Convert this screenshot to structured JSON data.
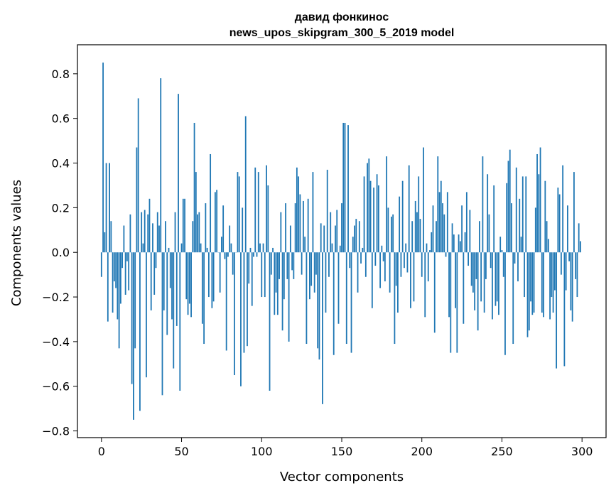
{
  "chart_data": {
    "type": "bar",
    "title_line1": "давид фонкинос",
    "title_line2": "news_upos_skipgram_300_5_2019 model",
    "xlabel": "Vector components",
    "ylabel": "Components values",
    "xlim": [
      -15,
      315
    ],
    "ylim": [
      -0.83,
      0.93
    ],
    "xticks": [
      0,
      50,
      100,
      150,
      200,
      250,
      300
    ],
    "yticks": [
      -0.8,
      -0.6,
      -0.4,
      -0.2,
      0.0,
      0.2,
      0.4,
      0.6,
      0.8
    ],
    "ytick_labels": [
      "−0.8",
      "−0.6",
      "−0.4",
      "−0.2",
      "0.0",
      "0.2",
      "0.4",
      "0.6",
      "0.8"
    ],
    "bar_color": "#1f77b4",
    "grid": false,
    "values": [
      -0.11,
      0.85,
      0.09,
      0.4,
      -0.31,
      0.4,
      0.14,
      -0.27,
      -0.13,
      -0.16,
      -0.3,
      -0.43,
      -0.23,
      -0.07,
      0.12,
      -0.19,
      -0.04,
      -0.17,
      0.17,
      -0.59,
      -0.75,
      -0.43,
      0.47,
      0.69,
      -0.71,
      0.18,
      0.04,
      0.19,
      -0.56,
      0.17,
      0.24,
      -0.26,
      0.13,
      -0.19,
      -0.07,
      0.18,
      0.12,
      0.78,
      -0.64,
      -0.26,
      0.14,
      -0.37,
      0.02,
      -0.16,
      -0.3,
      -0.52,
      0.18,
      -0.33,
      0.71,
      -0.62,
      0.04,
      0.24,
      0.24,
      -0.21,
      -0.28,
      -0.23,
      -0.29,
      0.14,
      0.58,
      0.36,
      0.17,
      0.18,
      0.04,
      -0.32,
      -0.41,
      0.22,
      0.02,
      -0.2,
      0.44,
      -0.25,
      -0.22,
      0.27,
      0.28,
      0.0,
      -0.18,
      0.07,
      0.21,
      -0.03,
      -0.44,
      -0.02,
      0.12,
      0.04,
      -0.1,
      -0.55,
      0.0,
      0.36,
      0.34,
      -0.6,
      0.2,
      -0.45,
      0.61,
      -0.42,
      -0.14,
      0.02,
      -0.24,
      -0.02,
      0.38,
      -0.02,
      0.36,
      0.04,
      -0.2,
      0.04,
      -0.2,
      0.39,
      0.3,
      -0.62,
      -0.1,
      0.02,
      -0.28,
      -0.18,
      -0.28,
      -0.12,
      0.18,
      -0.35,
      -0.21,
      0.22,
      -0.12,
      -0.4,
      0.12,
      -0.08,
      -0.12,
      0.22,
      0.38,
      0.34,
      0.26,
      -0.1,
      0.23,
      0.07,
      -0.41,
      0.24,
      -0.21,
      -0.15,
      0.36,
      -0.18,
      -0.1,
      -0.43,
      -0.48,
      0.13,
      -0.68,
      0.12,
      -0.27,
      0.37,
      -0.11,
      0.18,
      0.04,
      -0.46,
      0.12,
      0.19,
      -0.32,
      0.03,
      0.22,
      0.58,
      0.58,
      -0.41,
      0.57,
      -0.07,
      -0.45,
      0.07,
      0.12,
      0.15,
      -0.18,
      0.14,
      -0.05,
      0.02,
      0.34,
      -0.11,
      0.4,
      0.42,
      0.32,
      -0.25,
      0.29,
      -0.06,
      0.35,
      0.3,
      -0.16,
      0.03,
      -0.04,
      -0.13,
      0.43,
      0.2,
      -0.18,
      0.16,
      0.17,
      -0.41,
      -0.15,
      -0.27,
      0.25,
      -0.11,
      0.32,
      -0.07,
      0.04,
      -0.09,
      0.39,
      -0.25,
      0.14,
      -0.22,
      0.23,
      0.18,
      0.34,
      0.15,
      -0.11,
      0.47,
      -0.29,
      0.04,
      -0.13,
      0.01,
      0.09,
      0.21,
      -0.36,
      0.14,
      0.43,
      0.27,
      0.32,
      0.22,
      0.17,
      -0.02,
      0.27,
      -0.29,
      -0.45,
      0.13,
      0.08,
      -0.25,
      -0.45,
      0.08,
      0.05,
      0.21,
      -0.32,
      0.09,
      0.27,
      -0.06,
      0.19,
      -0.15,
      -0.18,
      -0.26,
      -0.12,
      -0.35,
      0.14,
      -0.22,
      0.43,
      -0.27,
      -0.12,
      0.35,
      0.17,
      -0.07,
      -0.3,
      0.3,
      -0.24,
      -0.22,
      -0.28,
      0.07,
      0.01,
      -0.11,
      -0.46,
      0.31,
      0.41,
      0.46,
      0.22,
      -0.41,
      -0.05,
      0.38,
      -0.13,
      0.24,
      0.07,
      0.34,
      -0.2,
      0.34,
      -0.38,
      -0.35,
      -0.22,
      -0.28,
      -0.27,
      0.2,
      0.44,
      0.35,
      0.47,
      -0.27,
      -0.29,
      0.32,
      0.14,
      0.06,
      -0.3,
      -0.2,
      -0.27,
      -0.17,
      -0.52,
      0.29,
      0.26,
      -0.1,
      0.39,
      -0.51,
      -0.17,
      0.21,
      -0.04,
      -0.26,
      -0.31,
      0.36,
      -0.12,
      -0.2,
      0.13,
      0.05
    ]
  }
}
